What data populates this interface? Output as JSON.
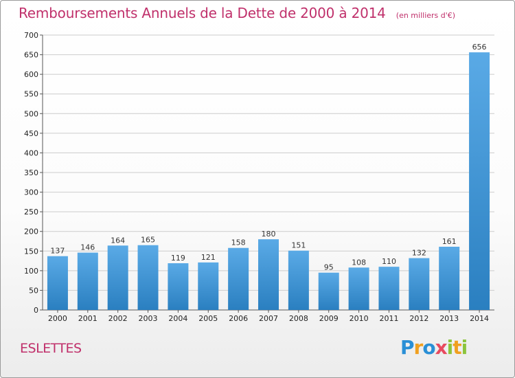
{
  "chart_data": {
    "type": "bar",
    "title": "Remboursements Annuels de la Dette de 2000 à 2014",
    "unit_note": "(en milliers d'€)",
    "categories": [
      "2000",
      "2001",
      "2002",
      "2003",
      "2004",
      "2005",
      "2006",
      "2007",
      "2008",
      "2009",
      "2010",
      "2011",
      "2012",
      "2013",
      "2014"
    ],
    "values": [
      137,
      146,
      164,
      165,
      119,
      121,
      158,
      180,
      151,
      95,
      108,
      110,
      132,
      161,
      656
    ],
    "data_labels": [
      "137",
      "146",
      "164",
      "165",
      "119",
      "121",
      "158",
      "180",
      "151",
      "95",
      "108",
      "110",
      "132",
      "161",
      "656"
    ],
    "ylim": [
      0,
      700
    ],
    "yticks": [
      0,
      50,
      100,
      150,
      200,
      250,
      300,
      350,
      400,
      450,
      500,
      550,
      600,
      650,
      700
    ],
    "grid": true,
    "xlabel": "",
    "ylabel": "",
    "colors": {
      "bar_light": "#5aaae6",
      "bar_dark": "#2a7fc0",
      "title": "#c0306b",
      "grid": "#cccccc"
    }
  },
  "footer": {
    "commune": "ESLETTES",
    "logo_letters": [
      {
        "ch": "P",
        "color": "#2a8fd6"
      },
      {
        "ch": "r",
        "color": "#f0a020"
      },
      {
        "ch": "o",
        "color": "#2a8fd6"
      },
      {
        "ch": "x",
        "color": "#e84a5f"
      },
      {
        "ch": "i",
        "color": "#8cc43c"
      },
      {
        "ch": "t",
        "color": "#f0a020"
      },
      {
        "ch": "i",
        "color": "#8cc43c"
      }
    ]
  }
}
